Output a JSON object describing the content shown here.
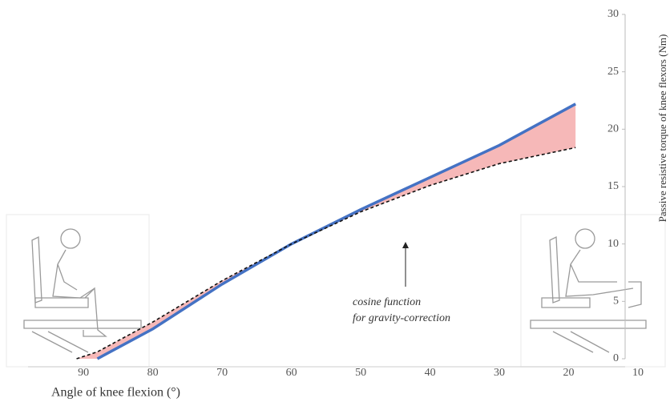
{
  "chart_data": {
    "type": "line",
    "x_label": "Angle of knee flexion (°)",
    "y_label": "Passive resistive torque of knee flexors (Nm)",
    "annotation": [
      "cosine function",
      "for gravity-correction"
    ],
    "x": [
      91,
      88,
      80,
      70,
      60,
      50,
      40,
      30,
      19
    ],
    "series": [
      {
        "color": "#4472c4",
        "dashed": false,
        "values": [
          null,
          0,
          2.6,
          6.5,
          10,
          13,
          15.8,
          18.6,
          22.2
        ]
      },
      {
        "color": "#111111",
        "dashed": true,
        "values": [
          0,
          0.6,
          3.2,
          6.8,
          10,
          12.8,
          15.1,
          17,
          18.4
        ]
      }
    ],
    "fill_between_color": "#f6b8b8",
    "xlim": [
      98,
      10
    ],
    "xticks": [
      90,
      80,
      70,
      60,
      50,
      40,
      30,
      20,
      10
    ],
    "ylim": [
      0,
      30
    ],
    "yticks": [
      0,
      5,
      10,
      15,
      20,
      25,
      30
    ],
    "grid": false
  }
}
